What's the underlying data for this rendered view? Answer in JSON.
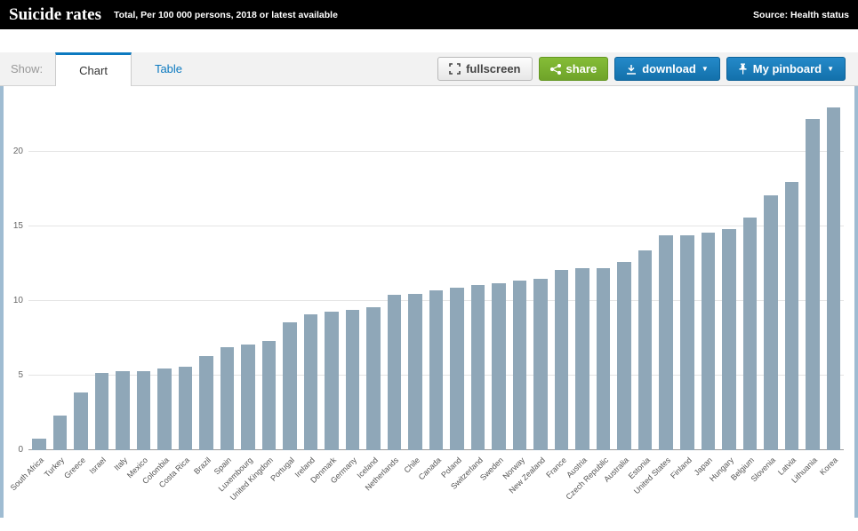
{
  "header": {
    "title": "Suicide rates",
    "subtitle": "Total, Per 100 000 persons, 2018 or latest available",
    "source": "Source: Health status"
  },
  "toolbar": {
    "show_label": "Show:",
    "tabs": [
      {
        "label": "Chart",
        "active": true
      },
      {
        "label": "Table",
        "active": false
      }
    ],
    "fullscreen_label": "fullscreen",
    "share_label": "share",
    "download_label": "download",
    "pinboard_label": "My pinboard",
    "caret": "▼"
  },
  "colors": {
    "accent_blue": "#0d7ac0",
    "button_green": "#6fa329",
    "bar_color": "#8fa7b8",
    "edge_strip": "#9fbcd2"
  },
  "chart_data": {
    "type": "bar",
    "title": "Suicide rates",
    "xlabel": "",
    "ylabel": "",
    "categories": [
      "South Africa",
      "Turkey",
      "Greece",
      "Israel",
      "Italy",
      "Mexico",
      "Colombia",
      "Costa Rica",
      "Brazil",
      "Spain",
      "Luxembourg",
      "United Kingdom",
      "Portugal",
      "Ireland",
      "Denmark",
      "Germany",
      "Iceland",
      "Netherlands",
      "Chile",
      "Canada",
      "Poland",
      "Switzerland",
      "Sweden",
      "Norway",
      "New Zealand",
      "France",
      "Austria",
      "Czech Republic",
      "Australia",
      "Estonia",
      "United States",
      "Finland",
      "Japan",
      "Hungary",
      "Belgium",
      "Slovenia",
      "Latvia",
      "Lithuania",
      "Korea"
    ],
    "values": [
      0.8,
      2.3,
      3.9,
      5.2,
      5.3,
      5.3,
      5.5,
      5.6,
      6.3,
      6.9,
      7.1,
      7.3,
      8.6,
      9.1,
      9.3,
      9.4,
      9.6,
      10.4,
      10.5,
      10.7,
      10.9,
      11.1,
      11.2,
      11.4,
      11.5,
      12.1,
      12.2,
      12.2,
      12.6,
      13.4,
      14.4,
      14.4,
      14.6,
      14.8,
      15.6,
      17.1,
      18.0,
      22.2,
      23.0
    ],
    "ylim": [
      0,
      23.7
    ],
    "yticks": [
      0,
      5,
      10,
      15,
      20
    ],
    "grid": true,
    "legend": false,
    "bar_color": "#8fa7b8"
  }
}
